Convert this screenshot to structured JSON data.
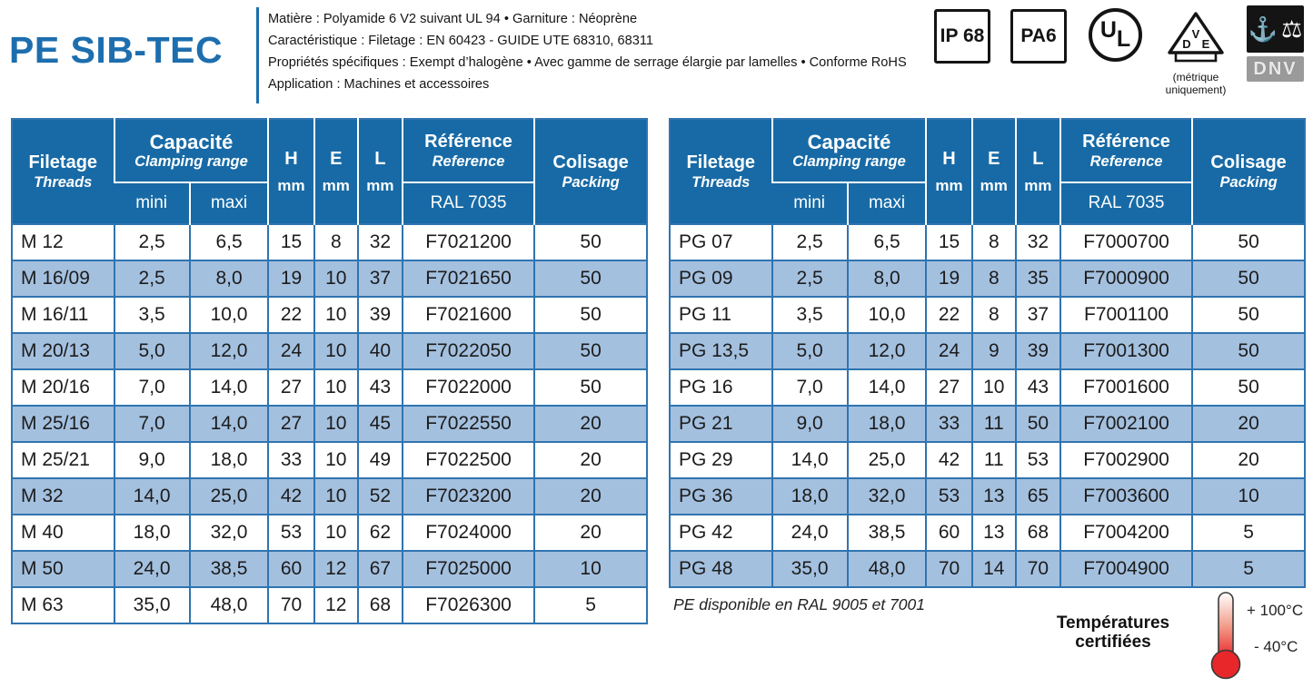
{
  "header": {
    "title": "PE SIB-TEC",
    "specs": [
      "Matière : Polyamide 6 V2 suivant UL 94 • Garniture : Néoprène",
      "Caractéristique : Filetage : EN 60423 - GUIDE UTE 68310, 68311",
      "Propriétés spécifiques : Exempt d’halogène • Avec gamme de serrage élargie par lamelles • Conforme RoHS",
      "Application : Machines et accessoires"
    ]
  },
  "badges": {
    "ip": "IP 68",
    "pa": "PA6",
    "ul": {
      "u": "U",
      "l": "L"
    },
    "vde": {
      "d": "D",
      "v": "V",
      "e": "E",
      "caption_line1": "(métrique",
      "caption_line2": "uniquement)"
    },
    "dnv": {
      "anchor": "⚓",
      "scales": "⚖",
      "label": "DNV"
    }
  },
  "table_header": {
    "col1_fr": "Filetage",
    "col1_en": "Threads",
    "cap_fr": "Capacité",
    "cap_en": "Clamping range",
    "mini": "mini",
    "maxi": "maxi",
    "h": "H",
    "e": "E",
    "l": "L",
    "mm": "mm",
    "ref_fr": "Référence",
    "ref_en": "Reference",
    "ref_sub": "RAL 7035",
    "pack_fr": "Colisage",
    "pack_en": "Packing"
  },
  "metric_table": {
    "rows": [
      [
        "M 12",
        "2,5",
        "6,5",
        "15",
        "8",
        "32",
        "F7021200",
        "50"
      ],
      [
        "M 16/09",
        "2,5",
        "8,0",
        "19",
        "10",
        "37",
        "F7021650",
        "50"
      ],
      [
        "M 16/11",
        "3,5",
        "10,0",
        "22",
        "10",
        "39",
        "F7021600",
        "50"
      ],
      [
        "M 20/13",
        "5,0",
        "12,0",
        "24",
        "10",
        "40",
        "F7022050",
        "50"
      ],
      [
        "M 20/16",
        "7,0",
        "14,0",
        "27",
        "10",
        "43",
        "F7022000",
        "50"
      ],
      [
        "M 25/16",
        "7,0",
        "14,0",
        "27",
        "10",
        "45",
        "F7022550",
        "20"
      ],
      [
        "M 25/21",
        "9,0",
        "18,0",
        "33",
        "10",
        "49",
        "F7022500",
        "20"
      ],
      [
        "M 32",
        "14,0",
        "25,0",
        "42",
        "10",
        "52",
        "F7023200",
        "20"
      ],
      [
        "M 40",
        "18,0",
        "32,0",
        "53",
        "10",
        "62",
        "F7024000",
        "20"
      ],
      [
        "M 50",
        "24,0",
        "38,5",
        "60",
        "12",
        "67",
        "F7025000",
        "10"
      ],
      [
        "M 63",
        "35,0",
        "48,0",
        "70",
        "12",
        "68",
        "F7026300",
        "5"
      ]
    ]
  },
  "pg_table": {
    "rows": [
      [
        "PG 07",
        "2,5",
        "6,5",
        "15",
        "8",
        "32",
        "F7000700",
        "50"
      ],
      [
        "PG 09",
        "2,5",
        "8,0",
        "19",
        "8",
        "35",
        "F7000900",
        "50"
      ],
      [
        "PG 11",
        "3,5",
        "10,0",
        "22",
        "8",
        "37",
        "F7001100",
        "50"
      ],
      [
        "PG 13,5",
        "5,0",
        "12,0",
        "24",
        "9",
        "39",
        "F7001300",
        "50"
      ],
      [
        "PG 16",
        "7,0",
        "14,0",
        "27",
        "10",
        "43",
        "F7001600",
        "50"
      ],
      [
        "PG 21",
        "9,0",
        "18,0",
        "33",
        "11",
        "50",
        "F7002100",
        "20"
      ],
      [
        "PG 29",
        "14,0",
        "25,0",
        "42",
        "11",
        "53",
        "F7002900",
        "20"
      ],
      [
        "PG 36",
        "18,0",
        "32,0",
        "53",
        "13",
        "65",
        "F7003600",
        "10"
      ],
      [
        "PG 42",
        "24,0",
        "38,5",
        "60",
        "13",
        "68",
        "F7004200",
        "5"
      ],
      [
        "PG 48",
        "35,0",
        "48,0",
        "70",
        "14",
        "70",
        "F7004900",
        "5"
      ]
    ],
    "note": "PE disponible en RAL 9005 et 7001"
  },
  "temperature": {
    "title_line1": "Températures",
    "title_line2": "certifiées",
    "max": "+ 100°C",
    "min": "- 40°C"
  },
  "colors": {
    "brand_blue": "#1d6eae",
    "header_blue": "#176aa6",
    "row_blue": "#a4c0df",
    "border_blue": "#2f74b0",
    "thermo_red": "#e8272b"
  }
}
